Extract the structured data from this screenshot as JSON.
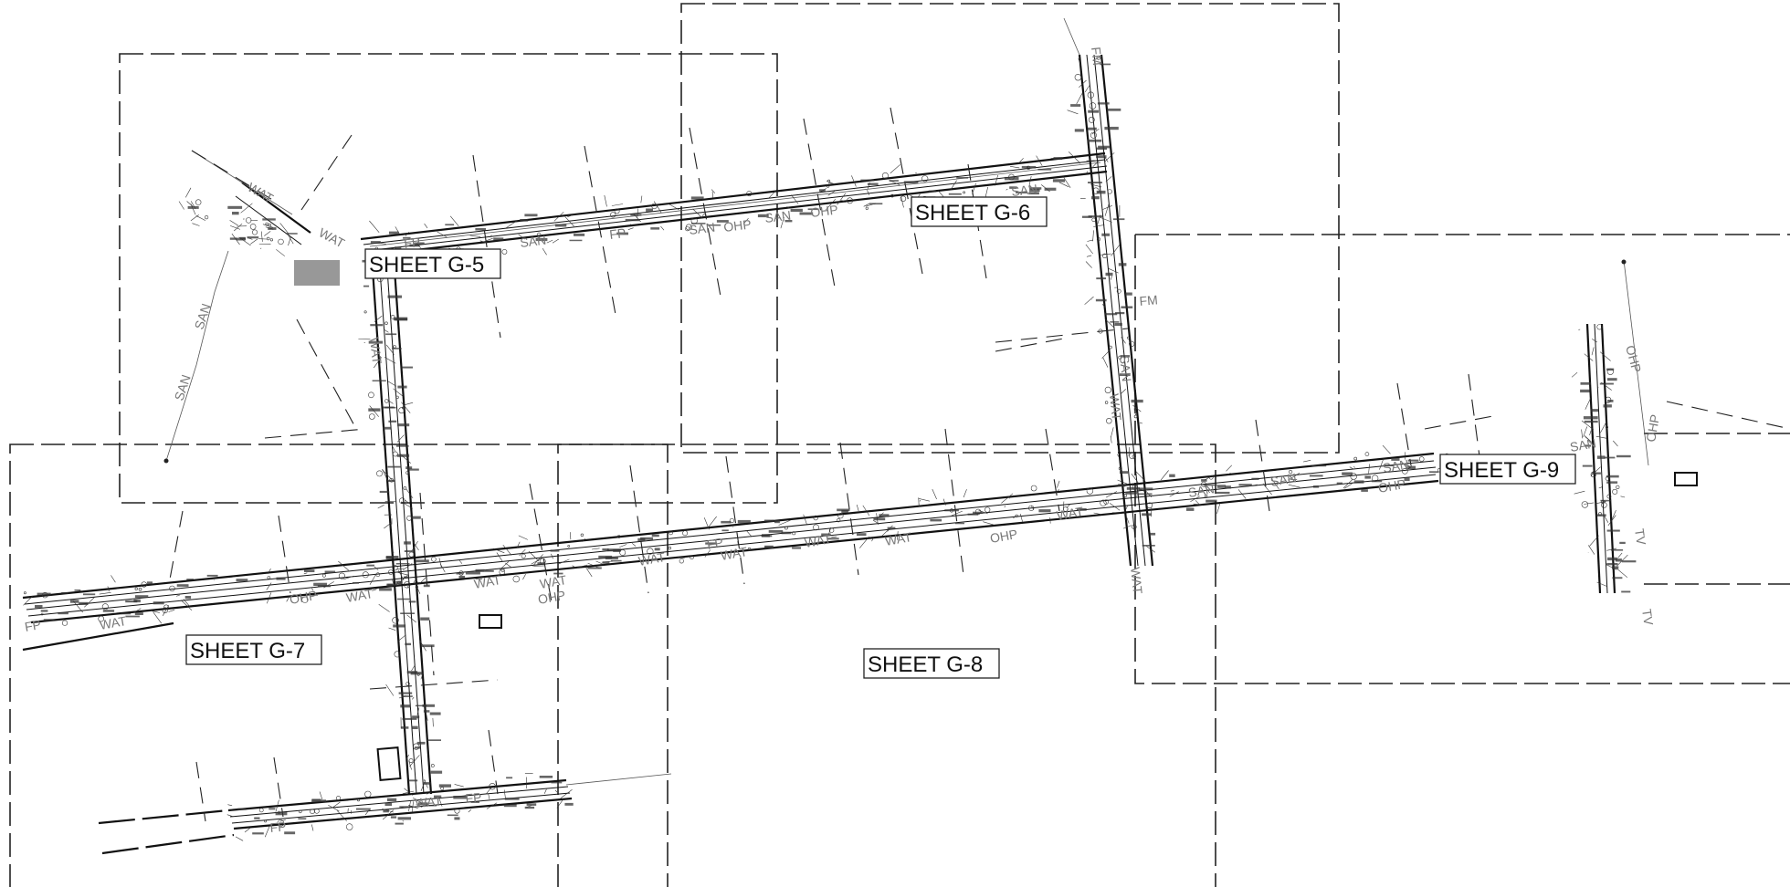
{
  "sheets": [
    {
      "label": "SHEET G-5"
    },
    {
      "label": "SHEET G-6"
    },
    {
      "label": "SHEET G-7"
    },
    {
      "label": "SHEET G-8"
    },
    {
      "label": "SHEET G-9"
    }
  ],
  "utility_labels": {
    "san": "SAN",
    "wat": "WAT",
    "ohp": "OHP",
    "fp": "FP",
    "fm": "FM",
    "tv": "TV"
  }
}
